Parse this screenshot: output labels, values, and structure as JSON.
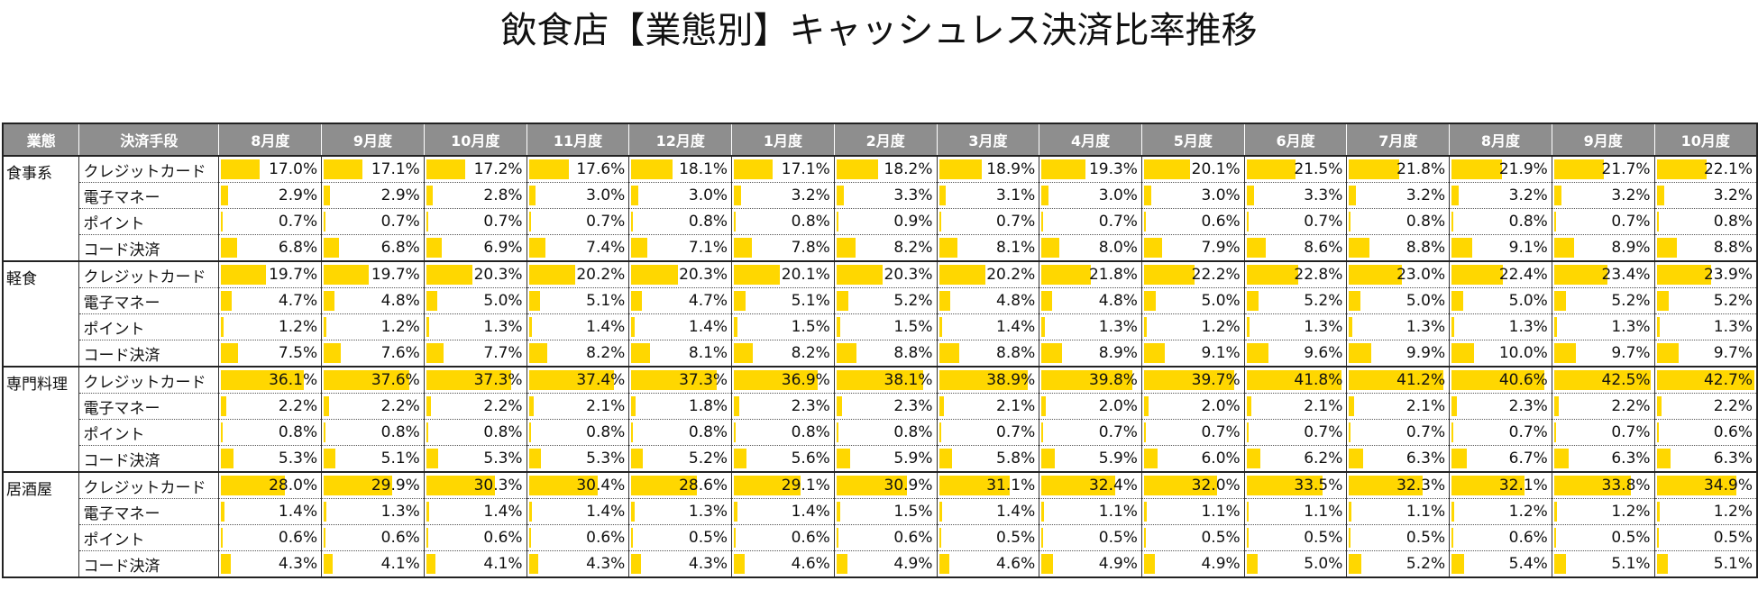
{
  "title": "飲食店【業態別】キャッシュレス決済比率推移",
  "header": {
    "category": "業態",
    "method": "決済手段"
  },
  "chart_data": {
    "type": "table",
    "title": "飲食店【業態別】キャッシュレス決済比率推移",
    "columns": [
      "8月度",
      "9月度",
      "10月度",
      "11月度",
      "12月度",
      "1月度",
      "2月度",
      "3月度",
      "4月度",
      "5月度",
      "6月度",
      "7月度",
      "8月度",
      "9月度",
      "10月度"
    ],
    "bar_max": 42.7,
    "groups": [
      {
        "name": "食事系",
        "rows": [
          {
            "method": "クレジットカード",
            "values": [
              17.0,
              17.1,
              17.2,
              17.6,
              18.1,
              17.1,
              18.2,
              18.9,
              19.3,
              20.1,
              21.5,
              21.8,
              21.9,
              21.7,
              22.1
            ]
          },
          {
            "method": "電子マネー",
            "values": [
              2.9,
              2.9,
              2.8,
              3.0,
              3.0,
              3.2,
              3.3,
              3.1,
              3.0,
              3.0,
              3.3,
              3.2,
              3.2,
              3.2,
              3.2
            ]
          },
          {
            "method": "ポイント",
            "values": [
              0.7,
              0.7,
              0.7,
              0.7,
              0.8,
              0.8,
              0.9,
              0.7,
              0.7,
              0.6,
              0.7,
              0.8,
              0.8,
              0.7,
              0.8
            ]
          },
          {
            "method": "コード決済",
            "values": [
              6.8,
              6.8,
              6.9,
              7.4,
              7.1,
              7.8,
              8.2,
              8.1,
              8.0,
              7.9,
              8.6,
              8.8,
              9.1,
              8.9,
              8.8
            ]
          }
        ]
      },
      {
        "name": "軽食",
        "rows": [
          {
            "method": "クレジットカード",
            "values": [
              19.7,
              19.7,
              20.3,
              20.2,
              20.3,
              20.1,
              20.3,
              20.2,
              21.8,
              22.2,
              22.8,
              23.0,
              22.4,
              23.4,
              23.9
            ]
          },
          {
            "method": "電子マネー",
            "values": [
              4.7,
              4.8,
              5.0,
              5.1,
              4.7,
              5.1,
              5.2,
              4.8,
              4.8,
              5.0,
              5.2,
              5.0,
              5.0,
              5.2,
              5.2
            ]
          },
          {
            "method": "ポイント",
            "values": [
              1.2,
              1.2,
              1.3,
              1.4,
              1.4,
              1.5,
              1.5,
              1.4,
              1.3,
              1.2,
              1.3,
              1.3,
              1.3,
              1.3,
              1.3
            ]
          },
          {
            "method": "コード決済",
            "values": [
              7.5,
              7.6,
              7.7,
              8.2,
              8.1,
              8.2,
              8.8,
              8.8,
              8.9,
              9.1,
              9.6,
              9.9,
              10.0,
              9.7,
              9.7
            ]
          }
        ]
      },
      {
        "name": "専門料理",
        "rows": [
          {
            "method": "クレジットカード",
            "values": [
              36.1,
              37.6,
              37.3,
              37.4,
              37.3,
              36.9,
              38.1,
              38.9,
              39.8,
              39.7,
              41.8,
              41.2,
              40.6,
              42.5,
              42.7
            ]
          },
          {
            "method": "電子マネー",
            "values": [
              2.2,
              2.2,
              2.2,
              2.1,
              1.8,
              2.3,
              2.3,
              2.1,
              2.0,
              2.0,
              2.1,
              2.1,
              2.3,
              2.2,
              2.2
            ]
          },
          {
            "method": "ポイント",
            "values": [
              0.8,
              0.8,
              0.8,
              0.8,
              0.8,
              0.8,
              0.8,
              0.7,
              0.7,
              0.7,
              0.7,
              0.7,
              0.7,
              0.7,
              0.6
            ]
          },
          {
            "method": "コード決済",
            "values": [
              5.3,
              5.1,
              5.3,
              5.3,
              5.2,
              5.6,
              5.9,
              5.8,
              5.9,
              6.0,
              6.2,
              6.3,
              6.7,
              6.3,
              6.3
            ]
          }
        ]
      },
      {
        "name": "居酒屋",
        "rows": [
          {
            "method": "クレジットカード",
            "values": [
              28.0,
              29.9,
              30.3,
              30.4,
              28.6,
              29.1,
              30.9,
              31.1,
              32.4,
              32.0,
              33.5,
              32.3,
              32.1,
              33.8,
              34.9
            ]
          },
          {
            "method": "電子マネー",
            "values": [
              1.4,
              1.3,
              1.4,
              1.4,
              1.3,
              1.4,
              1.5,
              1.4,
              1.1,
              1.1,
              1.1,
              1.1,
              1.2,
              1.2,
              1.2
            ]
          },
          {
            "method": "ポイント",
            "values": [
              0.6,
              0.6,
              0.6,
              0.6,
              0.5,
              0.6,
              0.6,
              0.5,
              0.5,
              0.5,
              0.5,
              0.5,
              0.6,
              0.5,
              0.5
            ]
          },
          {
            "method": "コード決済",
            "values": [
              4.3,
              4.1,
              4.1,
              4.3,
              4.3,
              4.6,
              4.9,
              4.6,
              4.9,
              4.9,
              5.0,
              5.2,
              5.4,
              5.1,
              5.1
            ]
          }
        ]
      }
    ]
  }
}
